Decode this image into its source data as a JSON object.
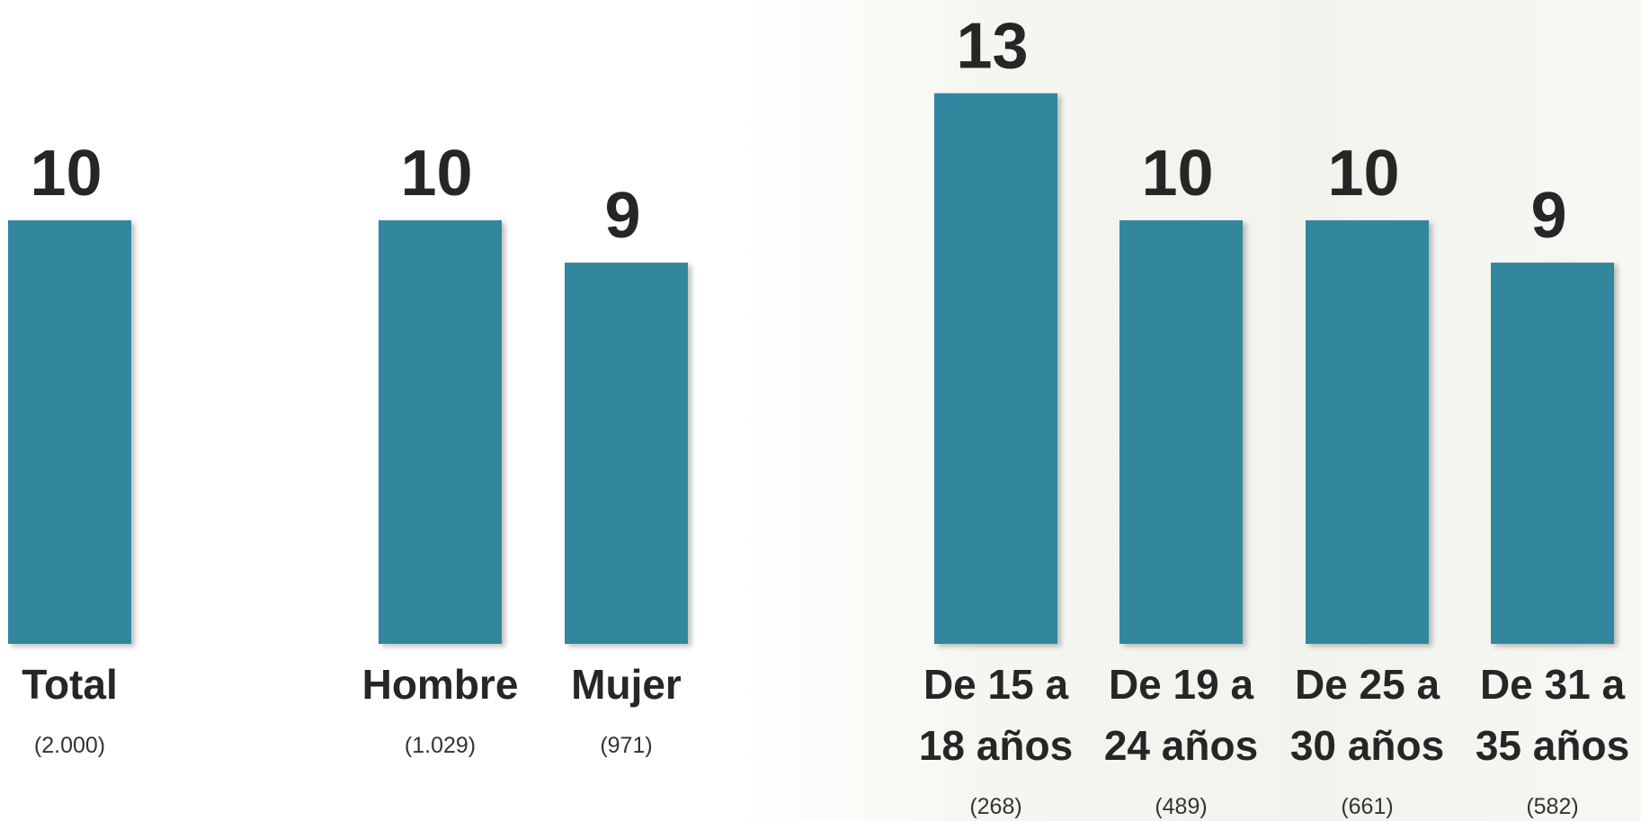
{
  "chart_data": {
    "type": "bar",
    "categories": [
      "Total",
      "Hombre",
      "Mujer",
      "De 15 a 18 años",
      "De 19 a 24 años",
      "De 25 a 30 años",
      "De 31 a 35 años"
    ],
    "values": [
      10,
      10,
      9,
      13,
      10,
      10,
      9
    ],
    "sample_sizes": [
      "(2.000)",
      "(1.029)",
      "(971)",
      "(268)",
      "(489)",
      "(661)",
      "(582)"
    ],
    "color": "#32869e"
  }
}
